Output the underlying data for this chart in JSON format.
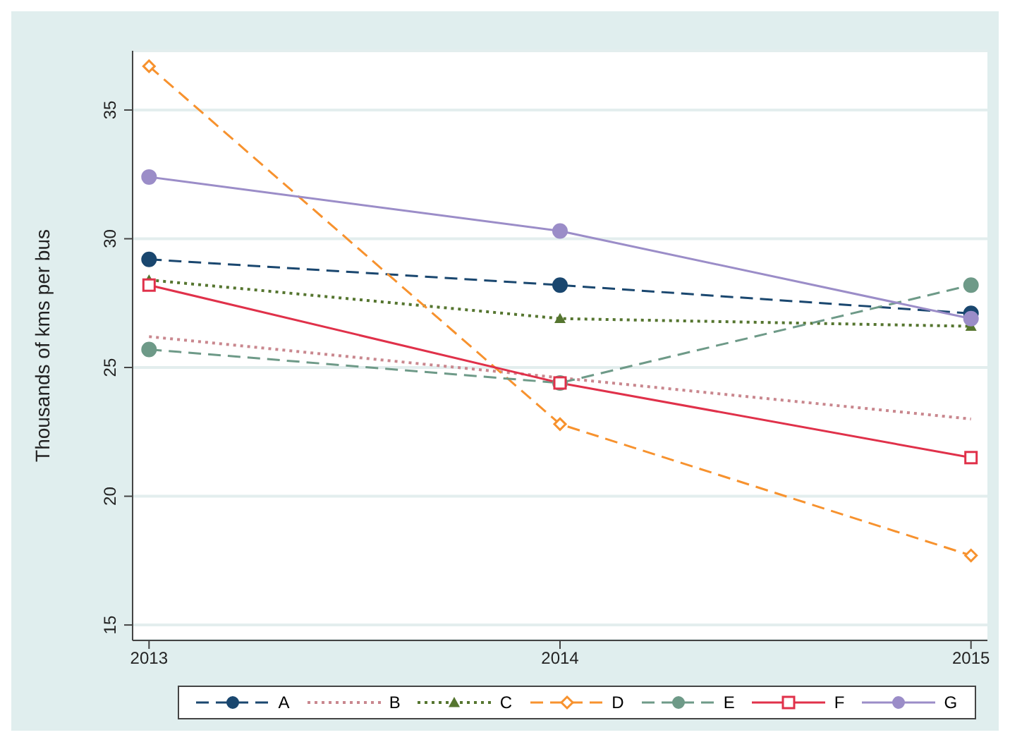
{
  "chart_data": {
    "type": "line",
    "ylabel": "Thousands of kms per bus",
    "x": [
      2013,
      2014,
      2015
    ],
    "xlim": [
      2012.96,
      2015.04
    ],
    "xticks": [
      2013,
      2014,
      2015
    ],
    "ylim": [
      14.4,
      37.3
    ],
    "yticks": [
      15,
      20,
      25,
      30,
      35
    ],
    "grid": "y",
    "legend": "bottom",
    "series": [
      {
        "name": "A",
        "color": "#1a476f",
        "values": [
          29.2,
          28.2,
          27.1
        ],
        "marker": "circle",
        "line_style": "dashed"
      },
      {
        "name": "B",
        "color": "#c9878e",
        "values": [
          26.2,
          24.6,
          23.0
        ],
        "marker": "none",
        "line_style": "dotted"
      },
      {
        "name": "C",
        "color": "#55752f",
        "values": [
          28.4,
          26.9,
          26.6
        ],
        "marker": "triangle",
        "line_style": "dotted"
      },
      {
        "name": "D",
        "color": "#f7922e",
        "values": [
          36.7,
          22.8,
          17.7
        ],
        "marker": "diamond",
        "line_style": "dashed"
      },
      {
        "name": "E",
        "color": "#6e9a88",
        "values": [
          25.7,
          24.4,
          28.2
        ],
        "marker": "circle",
        "line_style": "dashed"
      },
      {
        "name": "F",
        "color": "#e0314a",
        "values": [
          28.2,
          24.4,
          21.5
        ],
        "marker": "square",
        "line_style": "solid"
      },
      {
        "name": "G",
        "color": "#9b8dc8",
        "values": [
          32.4,
          30.3,
          26.9
        ],
        "marker": "circle",
        "line_style": "solid"
      }
    ]
  }
}
